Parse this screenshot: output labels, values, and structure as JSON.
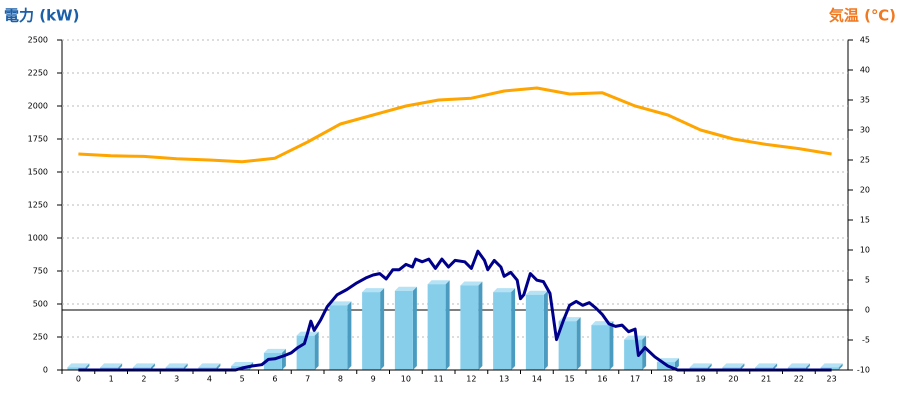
{
  "chart_data": {
    "type": "bar",
    "title": "電力 (kW)",
    "y2_title": "気温 (℃)",
    "categories": [
      "0",
      "1",
      "2",
      "3",
      "4",
      "5",
      "6",
      "7",
      "8",
      "9",
      "10",
      "11",
      "12",
      "13",
      "14",
      "15",
      "16",
      "17",
      "18",
      "19",
      "20",
      "21",
      "22",
      "23"
    ],
    "ylim": [
      0,
      2500
    ],
    "yticks": [
      0,
      250,
      500,
      750,
      1000,
      1250,
      1500,
      1750,
      2000,
      2250,
      2500
    ],
    "y2lim": [
      -10,
      45
    ],
    "y2ticks": [
      -10,
      -5,
      0,
      5,
      10,
      15,
      20,
      25,
      30,
      35,
      40,
      45
    ],
    "grid": true,
    "series": [
      {
        "type": "bar",
        "color": "#87ceeb",
        "values": [
          20,
          20,
          20,
          20,
          20,
          30,
          130,
          260,
          490,
          590,
          600,
          650,
          640,
          590,
          570,
          370,
          340,
          230,
          60,
          20,
          20,
          20,
          20,
          20
        ]
      },
      {
        "type": "line",
        "color": "#00008b",
        "x": [
          0,
          4.8,
          5,
          5.3,
          5.6,
          5.8,
          6,
          6.3,
          6.5,
          6.7,
          6.9,
          7,
          7.1,
          7.2,
          7.4,
          7.6,
          7.9,
          8.2,
          8.5,
          8.8,
          9,
          9.2,
          9.4,
          9.6,
          9.8,
          10,
          10.2,
          10.3,
          10.5,
          10.7,
          10.9,
          11.1,
          11.3,
          11.5,
          11.8,
          12,
          12.2,
          12.4,
          12.5,
          12.7,
          12.9,
          13,
          13.2,
          13.4,
          13.5,
          13.6,
          13.8,
          14,
          14.2,
          14.4,
          14.6,
          14.8,
          15,
          15.2,
          15.4,
          15.6,
          15.8,
          16,
          16.2,
          16.4,
          16.6,
          16.8,
          17,
          17.1,
          17.3,
          17.6,
          18,
          18.3,
          23
        ],
        "values": [
          0,
          0,
          15,
          30,
          40,
          80,
          85,
          110,
          130,
          170,
          200,
          280,
          370,
          300,
          380,
          480,
          570,
          610,
          660,
          700,
          720,
          730,
          690,
          760,
          760,
          800,
          780,
          840,
          820,
          840,
          770,
          840,
          780,
          830,
          820,
          770,
          900,
          830,
          760,
          830,
          780,
          710,
          740,
          680,
          540,
          570,
          730,
          680,
          670,
          580,
          230,
          370,
          490,
          520,
          490,
          510,
          470,
          420,
          350,
          330,
          340,
          290,
          310,
          110,
          170,
          100,
          30,
          0,
          0
        ]
      },
      {
        "type": "line",
        "axis": "y2",
        "color": "#ffa500",
        "values": [
          26,
          25.7,
          25.6,
          25.2,
          25,
          24.7,
          25.3,
          28,
          31,
          32.5,
          34,
          35,
          35.3,
          36.5,
          37,
          36,
          36.2,
          34,
          32.5,
          30,
          28.5,
          27.6,
          26.9,
          26
        ]
      }
    ]
  }
}
